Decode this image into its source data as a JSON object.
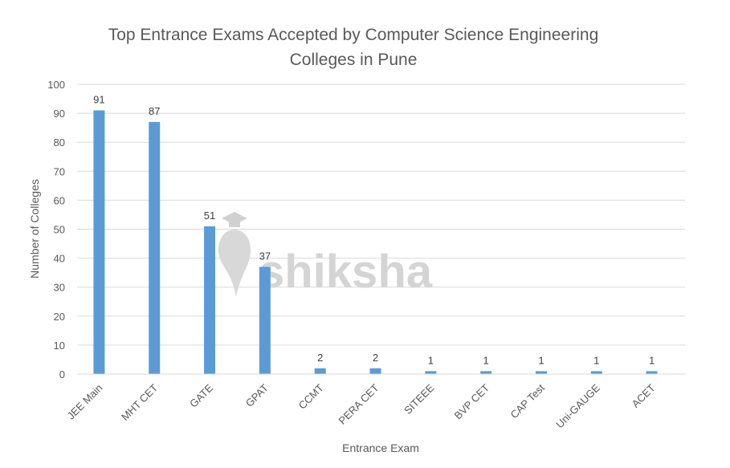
{
  "watermark": {
    "text": "shiksha",
    "icon": "graduation-cap-icon"
  },
  "chart_data": {
    "type": "bar",
    "title_lines": [
      "Top Entrance Exams Accepted by Computer Science Engineering",
      "Colleges in Pune"
    ],
    "xlabel": "Entrance Exam",
    "ylabel": "Number of Colleges",
    "ylim": [
      0,
      100
    ],
    "yticks": [
      0,
      10,
      20,
      30,
      40,
      50,
      60,
      70,
      80,
      90,
      100
    ],
    "grid": true,
    "legend": "none",
    "bar_color": "#5b9bd5",
    "categories": [
      "JEE Main",
      "MHT CET",
      "GATE",
      "GPAT",
      "CCMT",
      "PERA CET",
      "SITEEE",
      "BVP CET",
      "CAP Test",
      "Uni-GAUGE",
      "ACET"
    ],
    "values": [
      91,
      87,
      51,
      37,
      2,
      2,
      1,
      1,
      1,
      1,
      1
    ],
    "data_labels": [
      "91",
      "87",
      "51",
      "37",
      "2",
      "2",
      "1",
      "1",
      "1",
      "1",
      "1"
    ]
  }
}
